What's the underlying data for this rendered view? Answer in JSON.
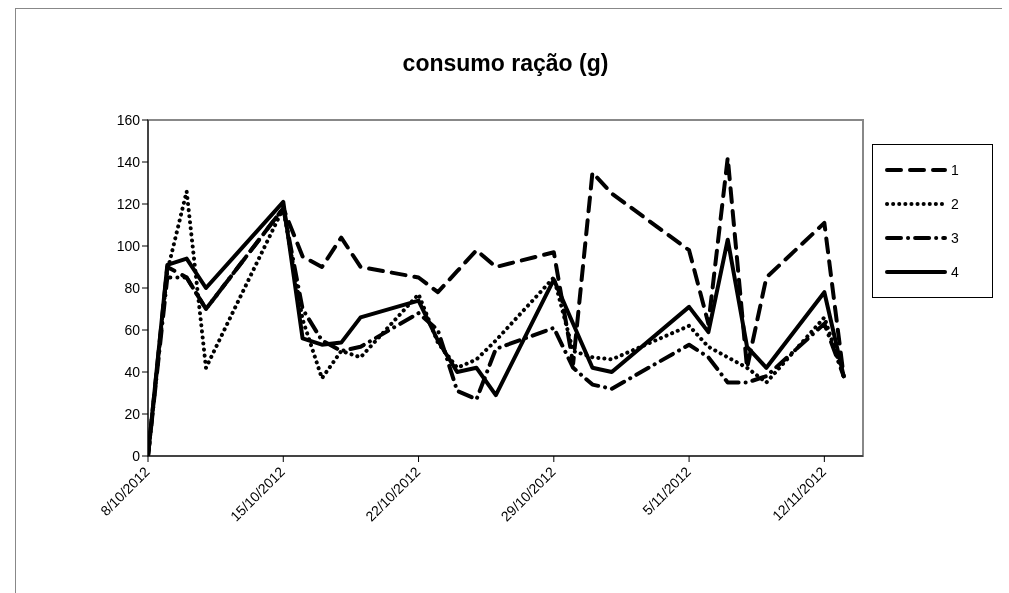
{
  "chart_data": {
    "type": "line",
    "title": "consumo ração (g)",
    "x": [
      "2012-10-08",
      "2012-10-09",
      "2012-10-10",
      "2012-10-11",
      "2012-10-15",
      "2012-10-16",
      "2012-10-17",
      "2012-10-18",
      "2012-10-19",
      "2012-10-22",
      "2012-10-23",
      "2012-10-24",
      "2012-10-25",
      "2012-10-26",
      "2012-10-29",
      "2012-10-30",
      "2012-10-31",
      "2012-11-01",
      "2012-11-05",
      "2012-11-06",
      "2012-11-07",
      "2012-11-08",
      "2012-11-09",
      "2012-11-12",
      "2012-11-13"
    ],
    "series": [
      {
        "name": "1",
        "color": "#000000",
        "line_style": "dashed",
        "values": [
          0,
          90,
          85,
          70,
          118,
          95,
          90,
          104,
          90,
          85,
          78,
          88,
          98,
          90,
          97,
          44,
          135,
          125,
          98,
          63,
          142,
          42,
          85,
          111,
          38
        ]
      },
      {
        "name": "2",
        "color": "#000000",
        "line_style": "dotted",
        "values": [
          0,
          88,
          126,
          42,
          118,
          65,
          37,
          50,
          47,
          77,
          54,
          42,
          46,
          55,
          85,
          50,
          47,
          46,
          62,
          52,
          47,
          42,
          35,
          66,
          38
        ]
      },
      {
        "name": "3",
        "color": "#000000",
        "line_style": "dashdot",
        "values": [
          0,
          85,
          85,
          70,
          118,
          70,
          55,
          50,
          52,
          68,
          60,
          31,
          27,
          51,
          61,
          42,
          34,
          32,
          53,
          47,
          35,
          35,
          38,
          63,
          38
        ]
      },
      {
        "name": "4",
        "color": "#000000",
        "line_style": "solid",
        "values": [
          0,
          91,
          94,
          80,
          121,
          56,
          53,
          54,
          66,
          74,
          55,
          40,
          42,
          29,
          84,
          63,
          42,
          40,
          71,
          59,
          103,
          52,
          42,
          78,
          38
        ]
      }
    ],
    "xlim": [
      "2012-10-08",
      "2012-11-14"
    ],
    "xticks": [
      {
        "value": "2012-10-08",
        "label": "8/10/2012"
      },
      {
        "value": "2012-10-15",
        "label": "15/10/2012"
      },
      {
        "value": "2012-10-22",
        "label": "22/10/2012"
      },
      {
        "value": "2012-10-29",
        "label": "29/10/2012"
      },
      {
        "value": "2012-11-05",
        "label": "5/11/2012"
      },
      {
        "value": "2012-11-12",
        "label": "12/11/2012"
      }
    ],
    "ylim": [
      0,
      160
    ],
    "yticks": [
      0,
      20,
      40,
      60,
      80,
      100,
      120,
      140,
      160
    ],
    "legend": "right",
    "marker": "none"
  }
}
